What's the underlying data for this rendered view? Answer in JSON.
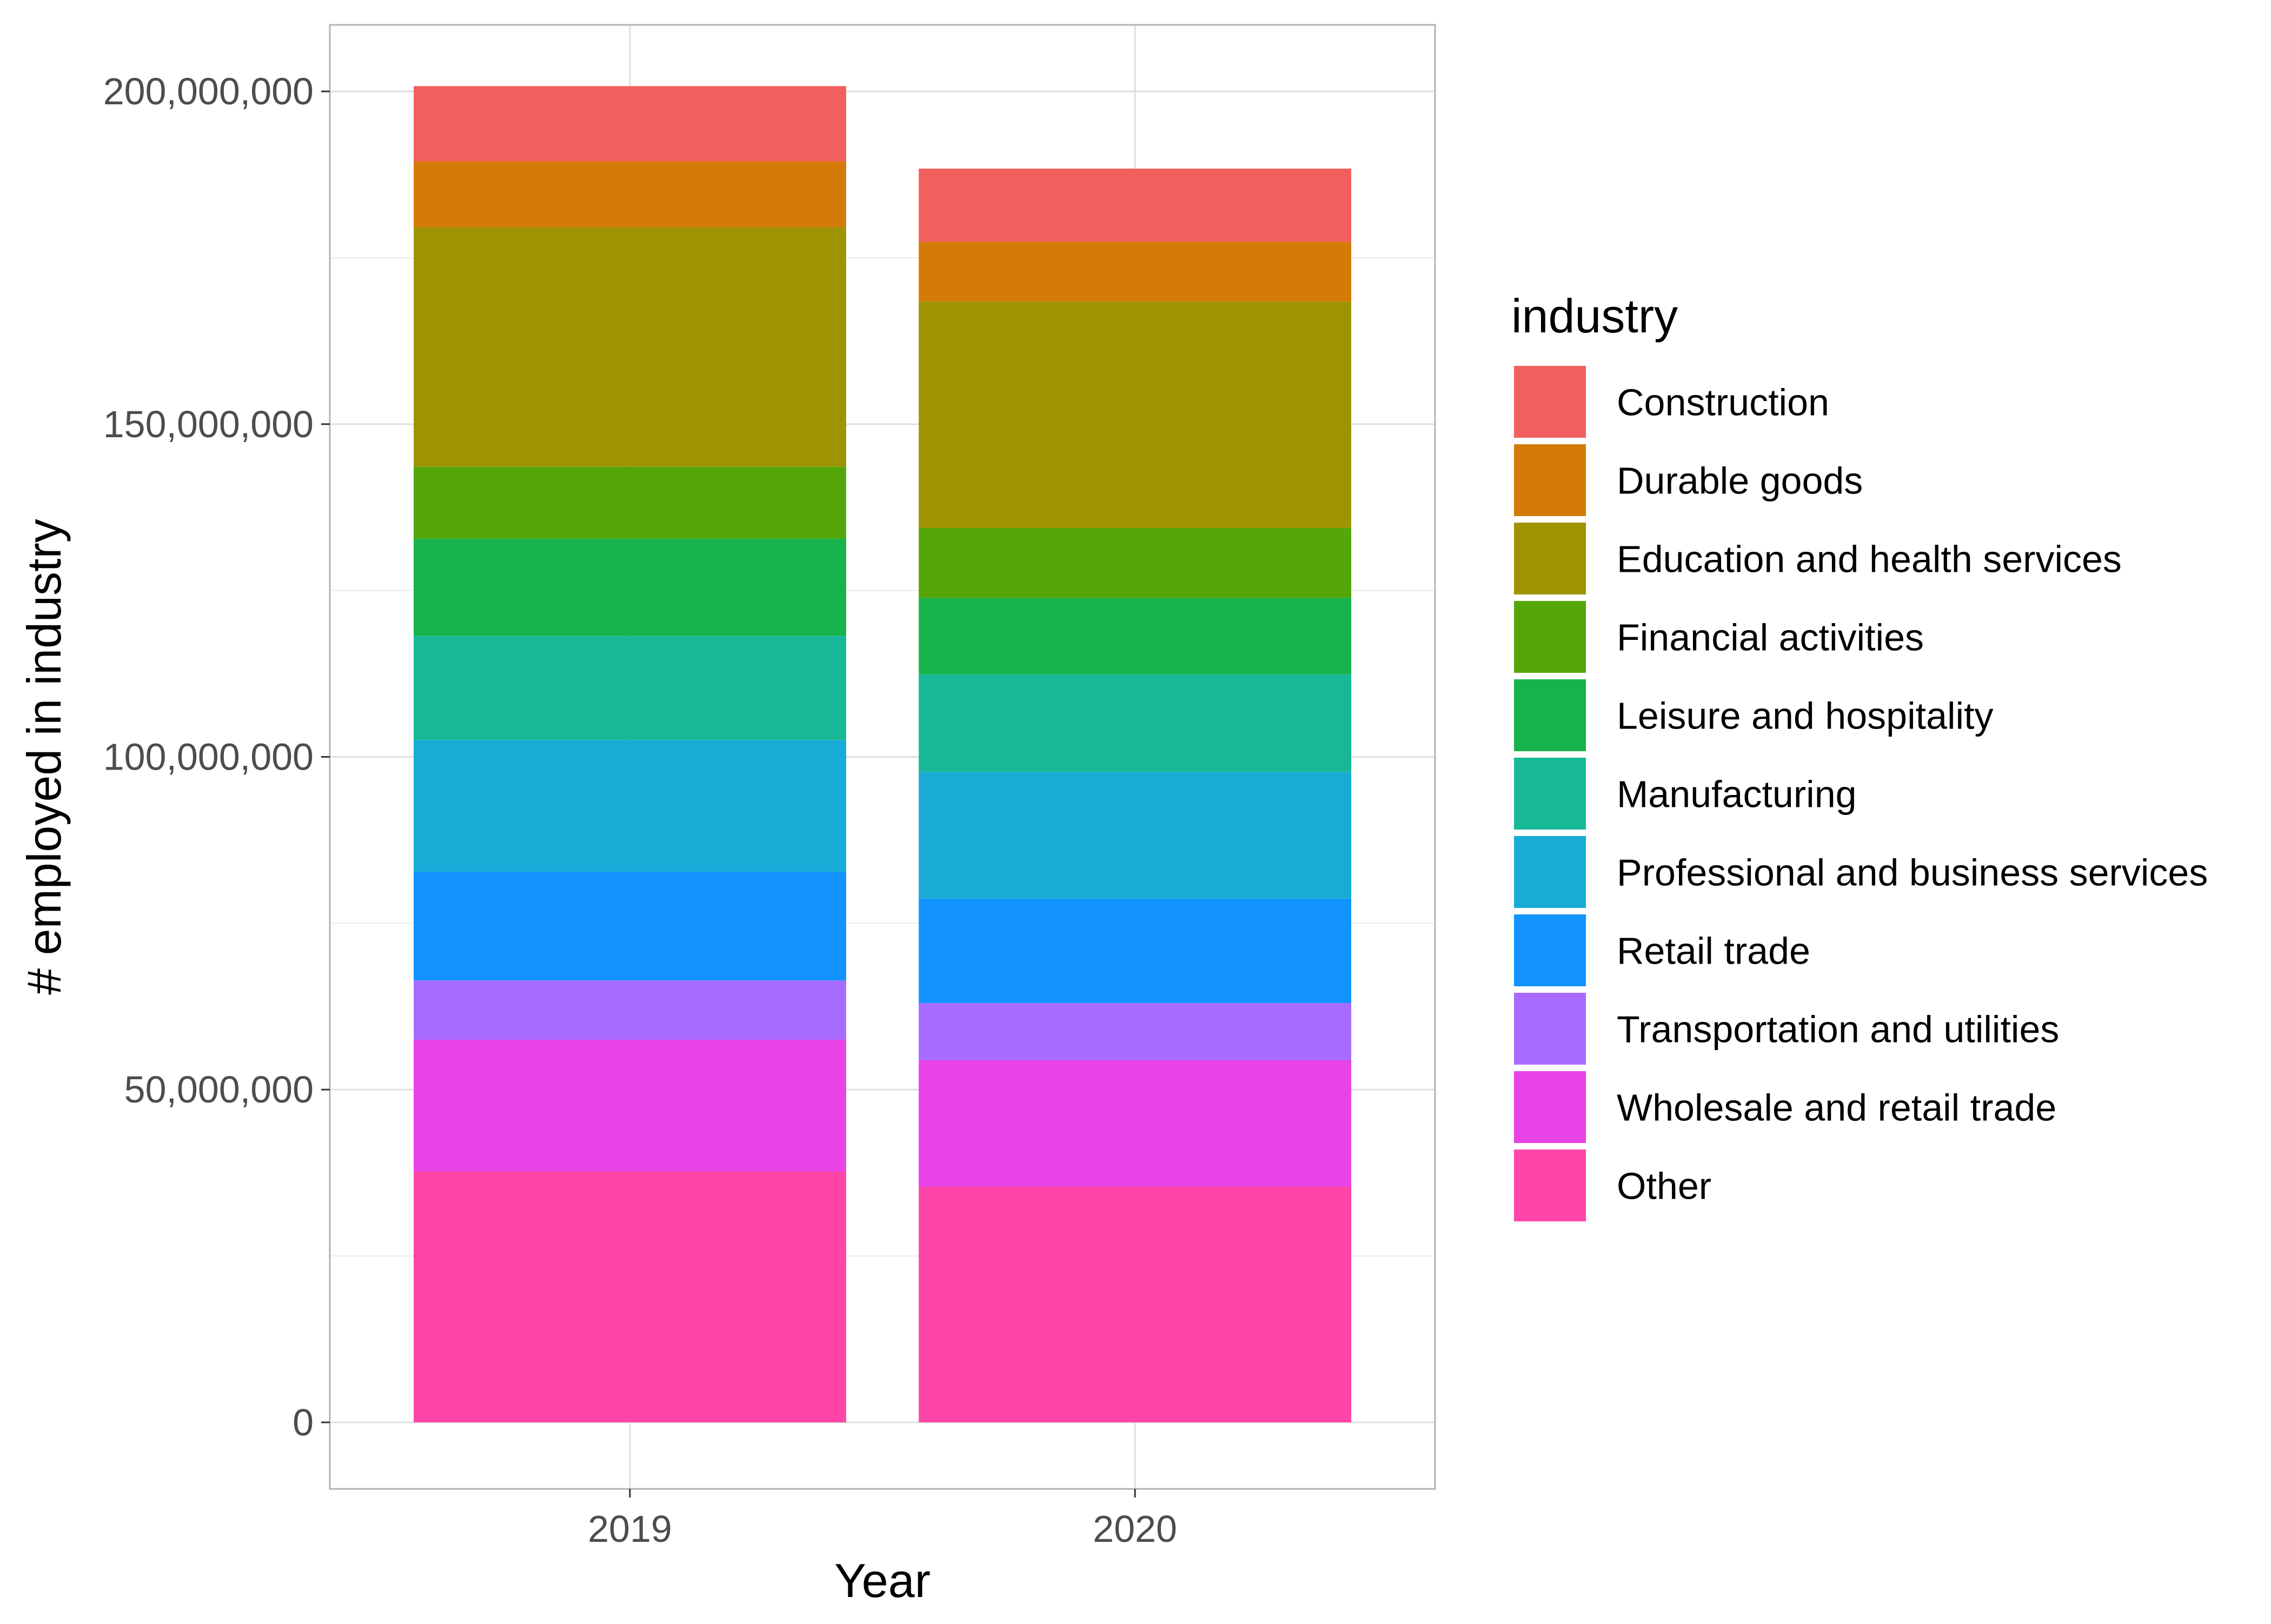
{
  "chart_data": {
    "type": "bar",
    "stacked": true,
    "x_label": "Year",
    "y_label": "# employed in industry",
    "categories": [
      "2019",
      "2020"
    ],
    "y_ticks": [
      0,
      50000000,
      100000000,
      150000000,
      200000000
    ],
    "y_tick_labels": [
      "0",
      "50,000,000",
      "100,000,000",
      "150,000,000",
      "200,000,000"
    ],
    "ylim": [
      -10000000,
      210000000
    ],
    "grid": true,
    "legend": {
      "title": "industry",
      "position": "right"
    },
    "series": [
      {
        "name": "Other",
        "color": "#FF45A7",
        "values": [
          37700000,
          35400000
        ]
      },
      {
        "name": "Wholesale and retail trade",
        "color": "#E743E6",
        "values": [
          19800000,
          19000000
        ]
      },
      {
        "name": "Transportation and utilities",
        "color": "#A76CFF",
        "values": [
          8900000,
          8600000
        ]
      },
      {
        "name": "Retail trade",
        "color": "#1293FF",
        "values": [
          16300000,
          15700000
        ]
      },
      {
        "name": "Professional and business services",
        "color": "#18ABD6",
        "values": [
          19800000,
          19000000
        ]
      },
      {
        "name": "Manufacturing",
        "color": "#18B897",
        "values": [
          15700000,
          14700000
        ]
      },
      {
        "name": "Leisure and hospitality",
        "color": "#18B24A",
        "values": [
          14600000,
          11500000
        ]
      },
      {
        "name": "Financial activities",
        "color": "#55A709",
        "values": [
          10800000,
          10500000
        ]
      },
      {
        "name": "Education and health services",
        "color": "#9E9403",
        "values": [
          36000000,
          34000000
        ]
      },
      {
        "name": "Durable goods",
        "color": "#D47A07",
        "values": [
          9900000,
          9000000
        ]
      },
      {
        "name": "Construction",
        "color": "#F2605E",
        "values": [
          11300000,
          11000000
        ]
      }
    ],
    "legend_order": [
      "Construction",
      "Durable goods",
      "Education and health services",
      "Financial activities",
      "Leisure and hospitality",
      "Manufacturing",
      "Professional and business services",
      "Retail trade",
      "Transportation and utilities",
      "Wholesale and retail trade",
      "Other"
    ]
  }
}
